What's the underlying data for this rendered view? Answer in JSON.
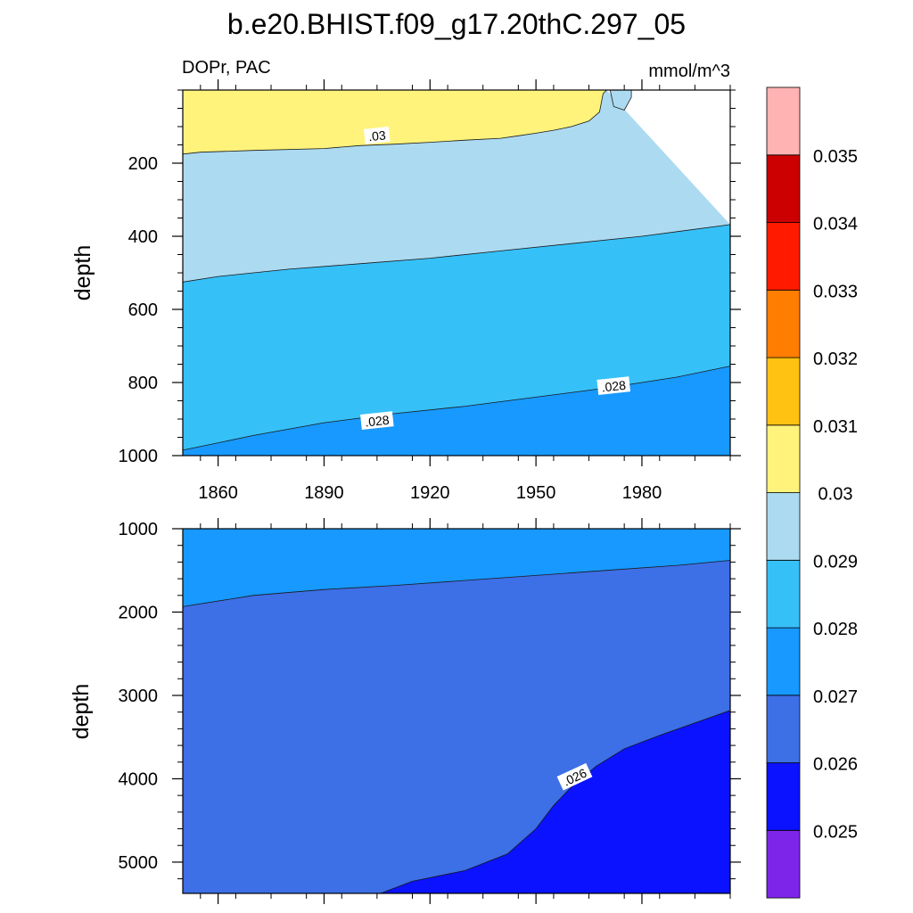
{
  "title": "b.e20.BHIST.f09_g17.20thC.297_05",
  "left_string": "DOPr, PAC",
  "right_string": "mmol/m^3",
  "chart_data": [
    {
      "type": "contour",
      "panel": "upper",
      "ylabel": "depth",
      "xlim": [
        1850,
        2005
      ],
      "ylim": [
        1000,
        0
      ],
      "x_ticks": [
        1860,
        1890,
        1920,
        1950,
        1980
      ],
      "y_ticks": [
        200,
        400,
        600,
        800,
        1000
      ],
      "contours": [
        {
          "level": 0.03,
          "label": ".03",
          "points": [
            [
              1850,
              175
            ],
            [
              1855,
              170
            ],
            [
              1870,
              165
            ],
            [
              1890,
              160
            ],
            [
              1900,
              152
            ],
            [
              1910,
              148
            ],
            [
              1920,
              143
            ],
            [
              1930,
              137
            ],
            [
              1940,
              132
            ],
            [
              1945,
              125
            ],
            [
              1950,
              118
            ],
            [
              1955,
              110
            ],
            [
              1960,
              100
            ],
            [
              1965,
              85
            ],
            [
              1968,
              60
            ],
            [
              1969,
              10
            ],
            [
              1970,
              0
            ]
          ]
        },
        {
          "level": 0.03,
          "label": "",
          "points": [
            [
              1971,
              0
            ],
            [
              1972,
              45
            ],
            [
              1975,
              55
            ],
            [
              1977,
              20
            ],
            [
              1977,
              0
            ]
          ]
        },
        {
          "level": 0.029,
          "label": "",
          "points": [
            [
              1850,
              525
            ],
            [
              1860,
              510
            ],
            [
              1880,
              490
            ],
            [
              1900,
              475
            ],
            [
              1920,
              460
            ],
            [
              1940,
              440
            ],
            [
              1960,
              420
            ],
            [
              1980,
              400
            ],
            [
              2005,
              368
            ]
          ]
        },
        {
          "level": 0.028,
          "label": ".028",
          "points": [
            [
              1850,
              985
            ],
            [
              1870,
              945
            ],
            [
              1890,
              910
            ],
            [
              1910,
              885
            ],
            [
              1930,
              865
            ],
            [
              1950,
              840
            ],
            [
              1970,
              815
            ],
            [
              1990,
              785
            ],
            [
              2005,
              755
            ]
          ]
        }
      ]
    },
    {
      "type": "contour",
      "panel": "lower",
      "ylabel": "depth",
      "xlim": [
        1850,
        2005
      ],
      "ylim": [
        5375,
        1000
      ],
      "x_ticks": [
        1860,
        1890,
        1920,
        1950,
        1980
      ],
      "y_ticks": [
        1000,
        2000,
        3000,
        4000,
        5000
      ],
      "contours": [
        {
          "level": 0.027,
          "label": "",
          "points": [
            [
              1850,
              1935
            ],
            [
              1870,
              1800
            ],
            [
              1890,
              1730
            ],
            [
              1910,
              1680
            ],
            [
              1930,
              1620
            ],
            [
              1950,
              1560
            ],
            [
              1970,
              1500
            ],
            [
              1990,
              1440
            ],
            [
              2005,
              1380
            ]
          ]
        },
        {
          "level": 0.026,
          "label": ".026",
          "points": [
            [
              1906,
              5375
            ],
            [
              1915,
              5230
            ],
            [
              1930,
              5100
            ],
            [
              1942,
              4900
            ],
            [
              1950,
              4600
            ],
            [
              1955,
              4320
            ],
            [
              1960,
              4100
            ],
            [
              1967,
              3850
            ],
            [
              1975,
              3640
            ],
            [
              1985,
              3480
            ],
            [
              1995,
              3330
            ],
            [
              2005,
              3180
            ]
          ]
        }
      ]
    }
  ],
  "colorbar": {
    "labels": [
      "0.025",
      "0.026",
      "0.027",
      "0.028",
      "0.029",
      "0.03",
      "0.031",
      "0.032",
      "0.033",
      "0.034",
      "0.035"
    ],
    "colors": [
      "#7d26ea",
      "#0a12ff",
      "#3d6fe6",
      "#1799ff",
      "#36c0f8",
      "#acdaf1",
      "#fff37c",
      "#ffc112",
      "#ff7d00",
      "#ff1a00",
      "#cc0000",
      "#ffb3b3"
    ]
  }
}
